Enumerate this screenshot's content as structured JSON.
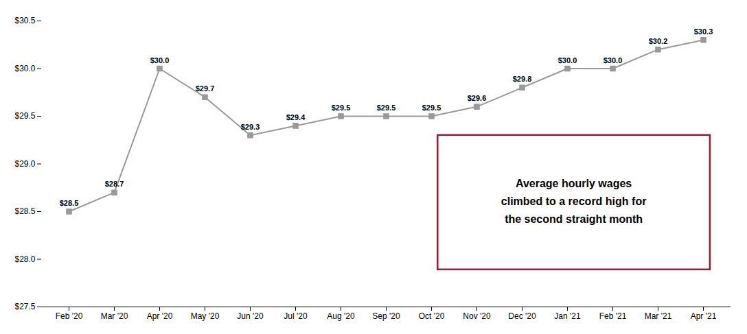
{
  "chart_data": {
    "type": "line",
    "categories": [
      "Feb '20",
      "Mar '20",
      "Apr '20",
      "May '20",
      "Jun '20",
      "Jul '20",
      "Aug '20",
      "Sep '20",
      "Oct '20",
      "Nov '20",
      "Dec '20",
      "Jan '21",
      "Feb '21",
      "Mar '21",
      "Apr '21"
    ],
    "values": [
      28.5,
      28.7,
      30.0,
      29.7,
      29.3,
      29.4,
      29.5,
      29.5,
      29.5,
      29.6,
      29.8,
      30.0,
      30.0,
      30.2,
      30.3
    ],
    "value_labels": [
      "$28.5",
      "$28.7",
      "$30.0",
      "$29.7",
      "$29.3",
      "$29.4",
      "$29.5",
      "$29.5",
      "$29.5",
      "$29.6",
      "$29.8",
      "$30.0",
      "$30.0",
      "$30.2",
      "$30.3"
    ],
    "data_labels": true,
    "color": "#999999",
    "marker": "square",
    "ylim": [
      27.5,
      30.5
    ],
    "yticks": [
      {
        "value": 27.5,
        "label": "$27.5"
      },
      {
        "value": 28.0,
        "label": "$28.0"
      },
      {
        "value": 28.5,
        "label": "$28.5"
      },
      {
        "value": 29.0,
        "label": "$29.0"
      },
      {
        "value": 29.5,
        "label": "$29.5"
      },
      {
        "value": 30.0,
        "label": "$30.0"
      },
      {
        "value": 30.5,
        "label": "$30.5"
      }
    ],
    "grid": false,
    "annotations": [
      {
        "text": "Average hourly wages\nclimbed to a record high for\nthe second straight month",
        "color": "#9b1c2e"
      }
    ]
  }
}
